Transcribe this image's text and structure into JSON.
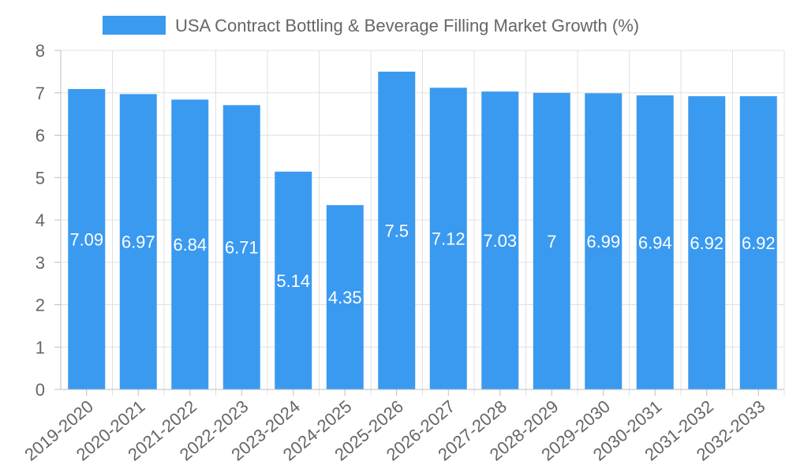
{
  "chart_data": {
    "type": "bar",
    "title": "",
    "xlabel": "",
    "ylabel": "",
    "legend": {
      "position": "top-center",
      "entries": [
        "USA Contract Bottling & Beverage Filling Market Growth (%)"
      ]
    },
    "categories": [
      "2019-2020",
      "2020-2021",
      "2021-2022",
      "2022-2023",
      "2023-2024",
      "2024-2025",
      "2025-2026",
      "2026-2027",
      "2027-2028",
      "2028-2029",
      "2029-2030",
      "2030-2031",
      "2031-2032",
      "2032-2033"
    ],
    "series": [
      {
        "name": "USA Contract Bottling & Beverage Filling Market Growth (%)",
        "values": [
          7.09,
          6.97,
          6.84,
          6.71,
          5.14,
          4.35,
          7.5,
          7.12,
          7.03,
          7,
          6.99,
          6.94,
          6.92,
          6.92
        ],
        "color": "#3a9af0"
      }
    ],
    "ylim": [
      0,
      8
    ],
    "yticks": [
      0,
      1,
      2,
      3,
      4,
      5,
      6,
      7,
      8
    ],
    "grid": true,
    "data_labels": true
  }
}
